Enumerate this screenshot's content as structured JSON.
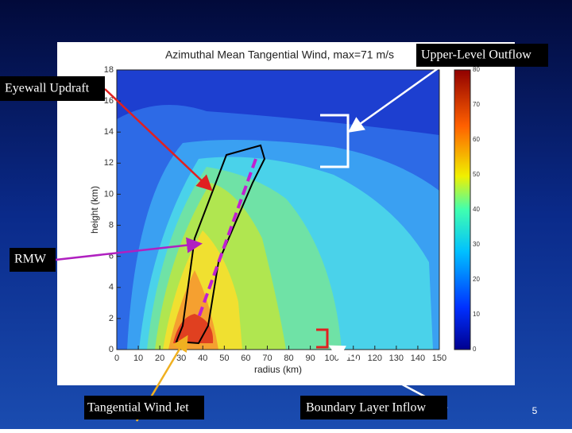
{
  "plot": {
    "title": "Azimuthal Mean Tangential Wind, max=71 m/s",
    "x_label": "radius (km)",
    "y_label": "height (km)",
    "x_ticks": [
      "0",
      "10",
      "20",
      "30",
      "40",
      "50",
      "60",
      "70",
      "80",
      "90",
      "100",
      "110",
      "120",
      "130",
      "140",
      "150"
    ],
    "y_ticks": [
      "0",
      "2",
      "4",
      "6",
      "8",
      "10",
      "12",
      "14",
      "16",
      "18"
    ],
    "colorbar_ticks": [
      "0",
      "10",
      "20",
      "30",
      "40",
      "50",
      "60",
      "70",
      "80"
    ]
  },
  "callouts": {
    "upper_level_outflow": "Upper-Level Outflow",
    "eyewall_updraft": "Eyewall Updraft",
    "rmw": "RMW",
    "tangential_wind_jet": "Tangential Wind Jet",
    "boundary_layer_inflow": "Boundary Layer Inflow"
  },
  "page_number": "5"
}
